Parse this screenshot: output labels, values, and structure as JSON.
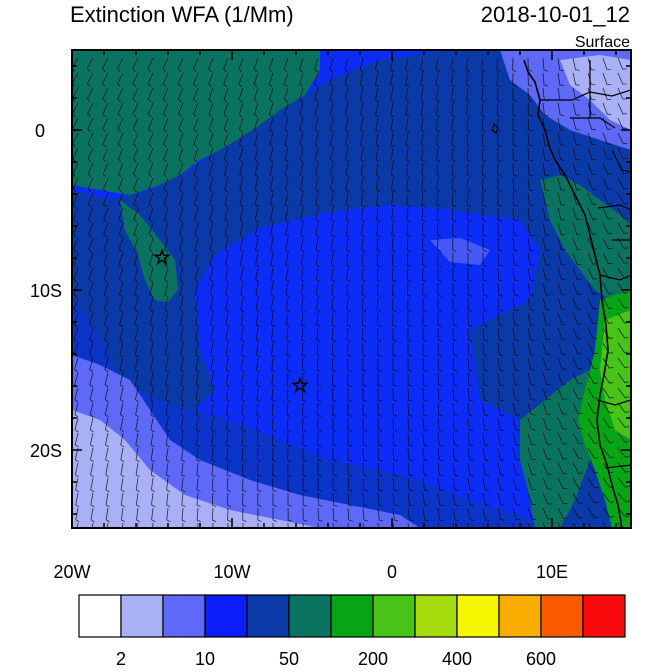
{
  "header": {
    "title": "Extinction WFA (1/Mm)",
    "datetime": "2018-10-01_12",
    "level": "Surface"
  },
  "axes": {
    "x_ticks": [
      "20W",
      "10W",
      "0",
      "10E"
    ],
    "y_ticks": [
      "0",
      "10S",
      "20S"
    ]
  },
  "colorbar": {
    "colors": [
      "#ffffff",
      "#aab0f5",
      "#5f69f7",
      "#0b1ef7",
      "#0a3aa8",
      "#0a735f",
      "#06a515",
      "#47c417",
      "#a5db0c",
      "#f7f700",
      "#f9ac00",
      "#f95a00",
      "#f90a0a"
    ],
    "labels": [
      "2",
      "10",
      "50",
      "200",
      "400",
      "600"
    ]
  },
  "markers": [
    {
      "name": "star-marker-northwest",
      "symbol": "☆"
    },
    {
      "name": "star-marker-center",
      "symbol": "☆"
    }
  ],
  "colors": {
    "ocean_base": "#0b2df7",
    "dark_blue": "#0a3aa8",
    "teal": "#0a735f",
    "light_blue": "#5f69f7",
    "pale_blue": "#aab0f5",
    "green": "#06a515",
    "light_green": "#47c417"
  }
}
